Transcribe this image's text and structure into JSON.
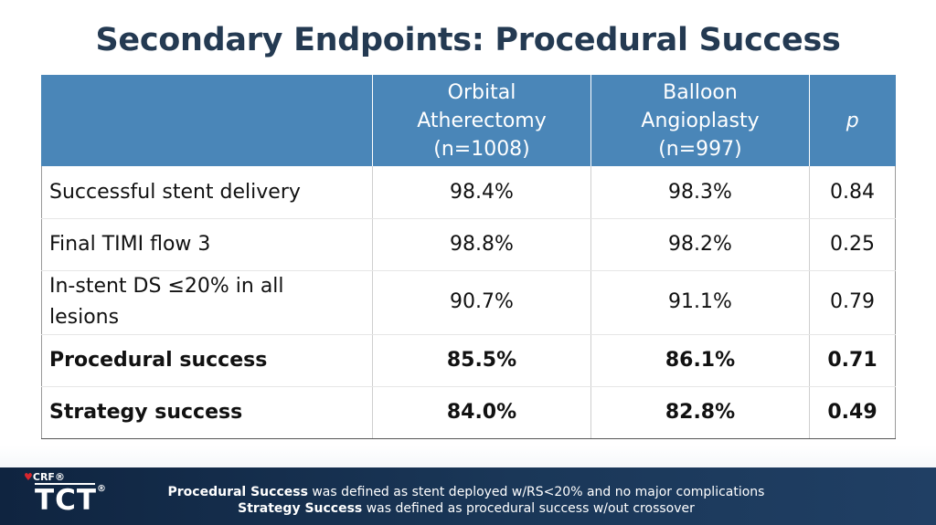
{
  "title": "Secondary Endpoints: Procedural Success",
  "table": {
    "headers": [
      {
        "lines": [
          ""
        ]
      },
      {
        "lines": [
          "Orbital",
          "Atherectomy",
          "(n=1008)"
        ]
      },
      {
        "lines": [
          "Balloon",
          "Angioplasty",
          "(n=997)"
        ]
      },
      {
        "lines": [
          "p"
        ]
      }
    ],
    "rows": [
      {
        "label": "Successful stent delivery",
        "oa": "98.4%",
        "ba": "98.3%",
        "p": "0.84",
        "bold": false
      },
      {
        "label": "Final TIMI flow 3",
        "oa": "98.8%",
        "ba": "98.2%",
        "p": "0.25",
        "bold": false
      },
      {
        "label_lines": [
          "In-stent DS ≤20% in all",
          "lesions"
        ],
        "oa": "90.7%",
        "ba": "91.1%",
        "p": "0.79",
        "bold": false
      },
      {
        "label": "Procedural success",
        "oa": "85.5%",
        "ba": "86.1%",
        "p": "0.71",
        "bold": true
      },
      {
        "label": "Strategy success",
        "oa": "84.0%",
        "ba": "82.8%",
        "p": "0.49",
        "bold": true
      }
    ]
  },
  "footnotes": [
    {
      "term": "Procedural Success",
      "text": " was defined as stent deployed w/RS<20% and no major complications"
    },
    {
      "term": "Strategy Success",
      "text": " was defined as procedural success w/out crossover"
    }
  ],
  "logo": {
    "top": "CRF",
    "main": "TCT",
    "registered": "®"
  },
  "colors": {
    "title": "#243a52",
    "header_bg": "#4a86b8",
    "footer_bg": "#0f2440",
    "logo_heart": "#d8262e"
  }
}
